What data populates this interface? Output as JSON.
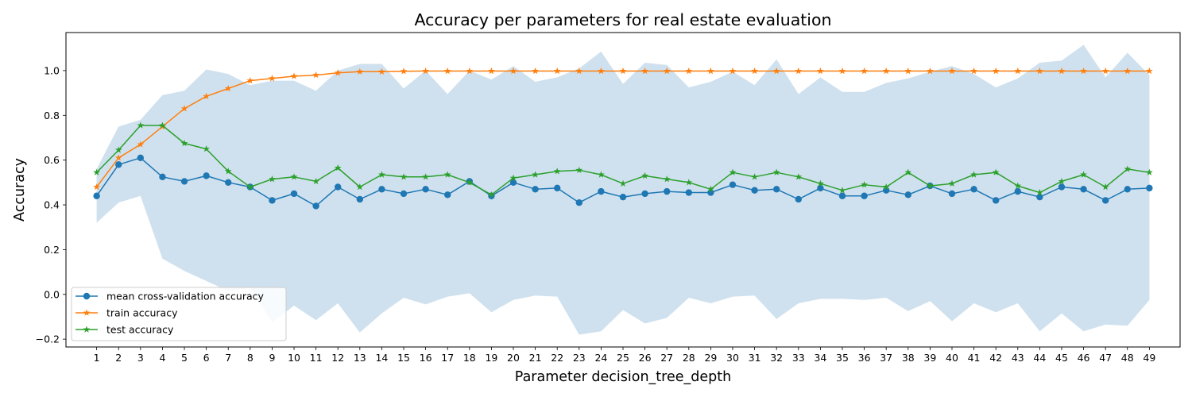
{
  "chart_data": {
    "type": "line",
    "title": "Accuracy per parameters for real estate evaluation",
    "xlabel": "Parameter decision_tree_depth",
    "ylabel": "Accuracy",
    "x": [
      1,
      2,
      3,
      4,
      5,
      6,
      7,
      8,
      9,
      10,
      11,
      12,
      13,
      14,
      15,
      16,
      17,
      18,
      19,
      20,
      21,
      22,
      23,
      24,
      25,
      26,
      27,
      28,
      29,
      30,
      31,
      32,
      33,
      34,
      35,
      36,
      37,
      38,
      39,
      40,
      41,
      42,
      43,
      44,
      45,
      46,
      47,
      48,
      49
    ],
    "xlim": [
      -0.4,
      50.4
    ],
    "ylim": [
      -0.235,
      1.17
    ],
    "yticks": [
      -0.2,
      0.0,
      0.2,
      0.4,
      0.6,
      0.8,
      1.0
    ],
    "ytick_labels": [
      "−0.2",
      "0.0",
      "0.2",
      "0.4",
      "0.6",
      "0.8",
      "1.0"
    ],
    "grid": false,
    "legend_position": "lower-left",
    "band": {
      "color": "#cfe1ee",
      "upper": [
        0.56,
        0.75,
        0.78,
        0.89,
        0.91,
        1.005,
        0.985,
        0.935,
        0.955,
        0.955,
        0.91,
        1.0,
        1.03,
        1.03,
        0.92,
        1.0,
        0.895,
        1.0,
        0.96,
        1.02,
        0.95,
        0.97,
        1.01,
        1.085,
        0.94,
        1.035,
        1.025,
        0.925,
        0.95,
        0.995,
        0.935,
        1.05,
        0.895,
        0.97,
        0.905,
        0.905,
        0.945,
        0.965,
        0.995,
        1.02,
        0.985,
        0.925,
        0.965,
        1.035,
        1.045,
        1.115,
        0.97,
        1.08,
        0.98
      ],
      "lower": [
        0.32,
        0.41,
        0.44,
        0.16,
        0.105,
        0.06,
        0.015,
        0.03,
        -0.125,
        -0.05,
        -0.115,
        -0.04,
        -0.17,
        -0.085,
        -0.015,
        -0.045,
        -0.01,
        0.005,
        -0.08,
        -0.025,
        -0.005,
        -0.01,
        -0.18,
        -0.165,
        -0.07,
        -0.13,
        -0.105,
        -0.015,
        -0.04,
        -0.01,
        -0.005,
        -0.11,
        -0.04,
        -0.02,
        -0.02,
        -0.025,
        -0.015,
        -0.075,
        -0.03,
        -0.12,
        -0.04,
        -0.08,
        -0.04,
        -0.165,
        -0.085,
        -0.165,
        -0.135,
        -0.14,
        -0.025
      ]
    },
    "series": [
      {
        "name": "mean cross-validation accuracy",
        "color": "#1f77b4",
        "marker": "circle",
        "values": [
          0.44,
          0.58,
          0.61,
          0.525,
          0.505,
          0.53,
          0.5,
          0.48,
          0.42,
          0.45,
          0.395,
          0.48,
          0.425,
          0.47,
          0.45,
          0.47,
          0.445,
          0.505,
          0.44,
          0.5,
          0.47,
          0.475,
          0.41,
          0.46,
          0.435,
          0.45,
          0.46,
          0.455,
          0.455,
          0.49,
          0.465,
          0.47,
          0.425,
          0.475,
          0.44,
          0.44,
          0.465,
          0.445,
          0.485,
          0.45,
          0.47,
          0.42,
          0.46,
          0.435,
          0.48,
          0.47,
          0.42,
          0.47,
          0.475
        ]
      },
      {
        "name": "train accuracy",
        "color": "#ff7f0e",
        "marker": "star",
        "values": [
          0.48,
          0.61,
          0.67,
          0.75,
          0.83,
          0.885,
          0.92,
          0.955,
          0.965,
          0.975,
          0.98,
          0.99,
          0.995,
          0.995,
          0.997,
          0.998,
          0.998,
          0.998,
          0.998,
          0.998,
          0.998,
          0.998,
          0.998,
          0.998,
          0.998,
          0.998,
          0.998,
          0.998,
          0.998,
          0.998,
          0.998,
          0.998,
          0.998,
          0.998,
          0.998,
          0.998,
          0.998,
          0.998,
          0.998,
          0.998,
          0.998,
          0.998,
          0.998,
          0.998,
          0.998,
          0.998,
          0.998,
          0.998,
          0.998
        ]
      },
      {
        "name": "test accuracy",
        "color": "#2ca02c",
        "marker": "star",
        "values": [
          0.545,
          0.645,
          0.755,
          0.755,
          0.675,
          0.65,
          0.55,
          0.48,
          0.515,
          0.525,
          0.505,
          0.565,
          0.48,
          0.535,
          0.525,
          0.525,
          0.535,
          0.5,
          0.445,
          0.52,
          0.535,
          0.55,
          0.555,
          0.535,
          0.495,
          0.53,
          0.515,
          0.5,
          0.47,
          0.545,
          0.525,
          0.545,
          0.525,
          0.495,
          0.465,
          0.49,
          0.48,
          0.545,
          0.485,
          0.495,
          0.535,
          0.545,
          0.485,
          0.455,
          0.505,
          0.535,
          0.48,
          0.56,
          0.545
        ]
      }
    ]
  }
}
